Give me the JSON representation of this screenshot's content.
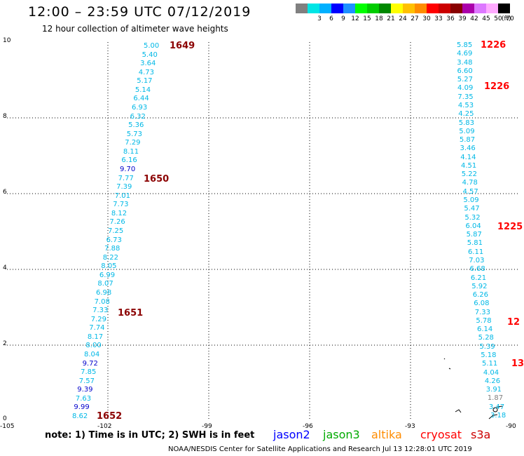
{
  "header": {
    "title": "12:00 – 23:59 UTC 07/12/2019",
    "subtitle": "12 hour collection of altimeter wave heights"
  },
  "scale": {
    "unit": "(ft)",
    "items": [
      {
        "label": "",
        "color": "#808080"
      },
      {
        "label": "3",
        "color": "#00e5e5"
      },
      {
        "label": "6",
        "color": "#00b0ff"
      },
      {
        "label": "9",
        "color": "#0000ff"
      },
      {
        "label": "12",
        "color": "#1e90ff"
      },
      {
        "label": "15",
        "color": "#00ff00"
      },
      {
        "label": "18",
        "color": "#00cc00"
      },
      {
        "label": "21",
        "color": "#008800"
      },
      {
        "label": "24",
        "color": "#ffff00"
      },
      {
        "label": "27",
        "color": "#ffc000"
      },
      {
        "label": "30",
        "color": "#ff8c00"
      },
      {
        "label": "33",
        "color": "#ff0000"
      },
      {
        "label": "36",
        "color": "#cc0000"
      },
      {
        "label": "39",
        "color": "#880000"
      },
      {
        "label": "42",
        "color": "#aa00aa"
      },
      {
        "label": "45",
        "color": "#dd77ff"
      },
      {
        "label": "50",
        "color": "#ffaaff"
      },
      {
        "label": "70",
        "color": "#000000"
      }
    ]
  },
  "axes": {
    "y_ticks": [
      "10",
      "8",
      "6",
      "4",
      "2",
      "0"
    ],
    "x_ticks": [
      "-105",
      "-102",
      "-99",
      "-96",
      "-93",
      "-90"
    ]
  },
  "track_left": {
    "values": [
      {
        "v": "5.00",
        "c": "#00b8e6"
      },
      {
        "v": "5.40",
        "c": "#00b8e6"
      },
      {
        "v": "3.64",
        "c": "#00b8e6"
      },
      {
        "v": "4.73",
        "c": "#00b8e6"
      },
      {
        "v": "5.17",
        "c": "#00b8e6"
      },
      {
        "v": "5.14",
        "c": "#00b8e6"
      },
      {
        "v": "6.44",
        "c": "#00b8e6"
      },
      {
        "v": "6.93",
        "c": "#00b8e6"
      },
      {
        "v": "6.32",
        "c": "#00b8e6"
      },
      {
        "v": "5.36",
        "c": "#00b8e6"
      },
      {
        "v": "5.73",
        "c": "#00b8e6"
      },
      {
        "v": "7.29",
        "c": "#00b8e6"
      },
      {
        "v": "8.11",
        "c": "#00b8e6"
      },
      {
        "v": "6.16",
        "c": "#00b8e6"
      },
      {
        "v": "9.70",
        "c": "#0000cc"
      },
      {
        "v": "7.77",
        "c": "#00b8e6"
      },
      {
        "v": "7.39",
        "c": "#00b8e6"
      },
      {
        "v": "7.01",
        "c": "#00b8e6"
      },
      {
        "v": "7.73",
        "c": "#00b8e6"
      },
      {
        "v": "8.12",
        "c": "#00b8e6"
      },
      {
        "v": "7.26",
        "c": "#00b8e6"
      },
      {
        "v": "7.25",
        "c": "#00b8e6"
      },
      {
        "v": "6.73",
        "c": "#00b8e6"
      },
      {
        "v": "7.88",
        "c": "#00b8e6"
      },
      {
        "v": "8.22",
        "c": "#00b8e6"
      },
      {
        "v": "8.05",
        "c": "#00b8e6"
      },
      {
        "v": "6.99",
        "c": "#00b8e6"
      },
      {
        "v": "8.07",
        "c": "#00b8e6"
      },
      {
        "v": "6.98",
        "c": "#00b8e6"
      },
      {
        "v": "7.08",
        "c": "#00b8e6"
      },
      {
        "v": "7.33",
        "c": "#00b8e6"
      },
      {
        "v": "7.29",
        "c": "#00b8e6"
      },
      {
        "v": "7.74",
        "c": "#00b8e6"
      },
      {
        "v": "8.17",
        "c": "#00b8e6"
      },
      {
        "v": "8.00",
        "c": "#00b8e6"
      },
      {
        "v": "8.04",
        "c": "#00b8e6"
      },
      {
        "v": "9.72",
        "c": "#0000cc"
      },
      {
        "v": "7.85",
        "c": "#00b8e6"
      },
      {
        "v": "7.57",
        "c": "#00b8e6"
      },
      {
        "v": "9.39",
        "c": "#0000cc"
      },
      {
        "v": "7.63",
        "c": "#00b8e6"
      },
      {
        "v": "9.99",
        "c": "#0000cc"
      },
      {
        "v": "8.62",
        "c": "#00b8e6"
      }
    ],
    "times": [
      "1649",
      "1650",
      "1651",
      "1652"
    ]
  },
  "track_right": {
    "values": [
      {
        "v": "5.85",
        "c": "#00b8e6"
      },
      {
        "v": "4.69",
        "c": "#00b8e6"
      },
      {
        "v": "3.48",
        "c": "#00b8e6"
      },
      {
        "v": "6.60",
        "c": "#00b8e6"
      },
      {
        "v": "5.27",
        "c": "#00b8e6"
      },
      {
        "v": "4.09",
        "c": "#00b8e6"
      },
      {
        "v": "7.35",
        "c": "#00b8e6"
      },
      {
        "v": "4.53",
        "c": "#00b8e6"
      },
      {
        "v": "4.25",
        "c": "#00b8e6"
      },
      {
        "v": "5.83",
        "c": "#00b8e6"
      },
      {
        "v": "5.09",
        "c": "#00b8e6"
      },
      {
        "v": "5.87",
        "c": "#00b8e6"
      },
      {
        "v": "3.46",
        "c": "#00b8e6"
      },
      {
        "v": "4.14",
        "c": "#00b8e6"
      },
      {
        "v": "4.51",
        "c": "#00b8e6"
      },
      {
        "v": "5.22",
        "c": "#00b8e6"
      },
      {
        "v": "4.78",
        "c": "#00b8e6"
      },
      {
        "v": "4.57",
        "c": "#00b8e6"
      },
      {
        "v": "5.09",
        "c": "#00b8e6"
      },
      {
        "v": "5.47",
        "c": "#00b8e6"
      },
      {
        "v": "5.32",
        "c": "#00b8e6"
      },
      {
        "v": "6.04",
        "c": "#00b8e6"
      },
      {
        "v": "5.87",
        "c": "#00b8e6"
      },
      {
        "v": "5.81",
        "c": "#00b8e6"
      },
      {
        "v": "6.11",
        "c": "#00b8e6"
      },
      {
        "v": "7.03",
        "c": "#00b8e6"
      },
      {
        "v": "6.68",
        "c": "#00b8e6"
      },
      {
        "v": "6.21",
        "c": "#00b8e6"
      },
      {
        "v": "5.92",
        "c": "#00b8e6"
      },
      {
        "v": "6.26",
        "c": "#00b8e6"
      },
      {
        "v": "6.08",
        "c": "#00b8e6"
      },
      {
        "v": "7.33",
        "c": "#00b8e6"
      },
      {
        "v": "5.78",
        "c": "#00b8e6"
      },
      {
        "v": "6.14",
        "c": "#00b8e6"
      },
      {
        "v": "5.28",
        "c": "#00b8e6"
      },
      {
        "v": "5.39",
        "c": "#00b8e6"
      },
      {
        "v": "5.18",
        "c": "#00b8e6"
      },
      {
        "v": "5.11",
        "c": "#00b8e6"
      },
      {
        "v": "4.04",
        "c": "#00b8e6"
      },
      {
        "v": "4.26",
        "c": "#00b8e6"
      },
      {
        "v": "3.91",
        "c": "#00b8e6"
      },
      {
        "v": "1.87",
        "c": "#808080"
      },
      {
        "v": "3.47",
        "c": "#00b8e6"
      },
      {
        "v": "3.18",
        "c": "#00b8e6"
      }
    ],
    "times": [
      "1226",
      "1226",
      "1225",
      "12",
      "13"
    ]
  },
  "footer": {
    "note": "note: 1) Time is in UTC; 2) SWH is in feet",
    "credit": "NOAA/NESDIS Center for Satellite Applications and Research    Jul 13 12:28:01 UTC 2019",
    "satellites": [
      {
        "name": "jason2",
        "color": "#0000ff"
      },
      {
        "name": "jason3",
        "color": "#00aa00"
      },
      {
        "name": "altika",
        "color": "#ff8c00"
      },
      {
        "name": "cryosat",
        "color": "#ff0000"
      },
      {
        "name": "s3a",
        "color": "#cc0000"
      }
    ]
  }
}
